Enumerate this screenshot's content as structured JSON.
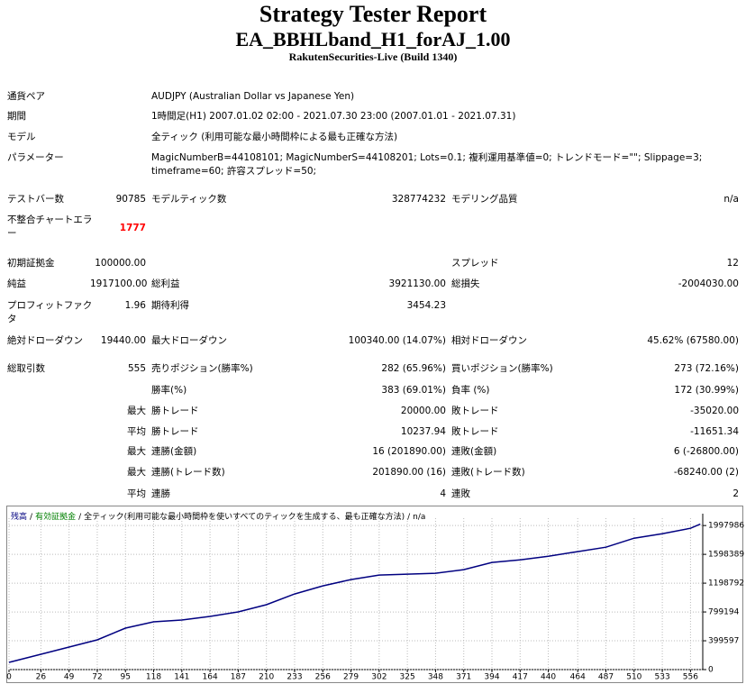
{
  "header": {
    "title": "Strategy Tester Report",
    "subtitle": "EA_BBHLband_H1_forAJ_1.00",
    "server": "RakutenSecurities-Live (Build 1340)"
  },
  "info": [
    {
      "label": "通貨ペア",
      "value": "AUDJPY (Australian Dollar vs Japanese Yen)"
    },
    {
      "label": "期間",
      "value": "1時間足(H1) 2007.01.02 02:00 - 2021.07.30 23:00 (2007.01.01 - 2021.07.31)"
    },
    {
      "label": "モデル",
      "value": "全ティック (利用可能な最小時間枠による最も正確な方法)"
    },
    {
      "label": "パラメーター",
      "value": "MagicNumberB=44108101; MagicNumberS=44108201; Lots=0.1; 複利運用基準値=0; トレンドモード=\"\"; Slippage=3; timeframe=60; 許容スプレッド=50;"
    }
  ],
  "summary": [
    {
      "label1": "テストバー数",
      "value1": "90785",
      "label2": "モデルティック数",
      "value2": "328774232",
      "label3": "モデリング品質",
      "value3": "n/a"
    },
    {
      "label1": "不整合チャートエラー",
      "value1": "1777",
      "value1_color": "#ff0000"
    },
    {
      "label1": "初期証拠金",
      "value1": "100000.00",
      "label3": "スプレッド",
      "value3": "12"
    },
    {
      "label1": "純益",
      "value1": "1917100.00",
      "label2": "総利益",
      "value2": "3921130.00",
      "label3": "総損失",
      "value3": "-2004030.00"
    },
    {
      "label1": "プロフィットファクタ",
      "value1": "1.96",
      "label2": "期待利得",
      "value2": "3454.23"
    },
    {
      "label1": "絶対ドローダウン",
      "value1": "19440.00",
      "label2": "最大ドローダウン",
      "value2": "100340.00 (14.07%)",
      "label3": "相対ドローダウン",
      "value3": "45.62% (67580.00)"
    },
    {
      "label1": "総取引数",
      "value1": "555",
      "label2": "売りポジション(勝率%)",
      "value2": "282 (65.96%)",
      "label3": "買いポジション(勝率%)",
      "value3": "273 (72.16%)"
    },
    {
      "label2": "勝率(%)",
      "value2": "383 (69.01%)",
      "label3": "負率 (%)",
      "value3": "172 (30.99%)"
    },
    {
      "value1": "最大",
      "label2": "勝トレード",
      "value2": "20000.00",
      "label3": "敗トレード",
      "value3": "-35020.00"
    },
    {
      "value1": "平均",
      "label2": "勝トレード",
      "value2": "10237.94",
      "label3": "敗トレード",
      "value3": "-11651.34"
    },
    {
      "value1": "最大",
      "label2": "連勝(金額)",
      "value2": "16 (201890.00)",
      "label3": "連敗(金額)",
      "value3": "6 (-26800.00)"
    },
    {
      "value1": "最大",
      "label2": "連勝(トレード数)",
      "value2": "201890.00 (16)",
      "label3": "連敗(トレード数)",
      "value3": "-68240.00 (2)"
    },
    {
      "value1": "平均",
      "label2": "連勝",
      "value2": "4",
      "label3": "連敗",
      "value3": "2"
    }
  ],
  "chart_data": {
    "type": "line",
    "legend_separator": "/",
    "legend_extra": [
      {
        "text": "有効証拠金",
        "color": "#008000"
      },
      {
        "text": "全ティック(利用可能な最小時間枠を使いすべてのティックを生成する、最も正確な方法)",
        "color": "#000000"
      },
      {
        "text": "n/a",
        "color": "#000000"
      }
    ],
    "x": [
      0,
      26,
      49,
      72,
      95,
      118,
      141,
      164,
      187,
      210,
      233,
      256,
      279,
      302,
      325,
      348,
      371,
      394,
      417,
      440,
      464,
      487,
      510,
      533,
      556,
      564
    ],
    "series": [
      {
        "name": "残高",
        "color": "#000080",
        "values": [
          100000,
          212000,
          312000,
          412000,
          575000,
          662000,
          687000,
          737000,
          800000,
          900000,
          1049000,
          1161000,
          1249000,
          1311000,
          1324000,
          1336000,
          1386000,
          1486000,
          1523000,
          1573000,
          1636000,
          1698000,
          1823000,
          1885000,
          1960000,
          2017100
        ]
      }
    ],
    "xlim": [
      0,
      566
    ],
    "ylim": [
      0,
      2100000
    ],
    "xticks": [
      0,
      26,
      49,
      72,
      95,
      118,
      141,
      164,
      187,
      210,
      233,
      256,
      279,
      302,
      325,
      348,
      371,
      394,
      417,
      440,
      464,
      487,
      510,
      533,
      556
    ],
    "yticks": [
      0,
      399597,
      799194,
      1198792,
      1598389,
      1997986
    ],
    "grid": true
  }
}
